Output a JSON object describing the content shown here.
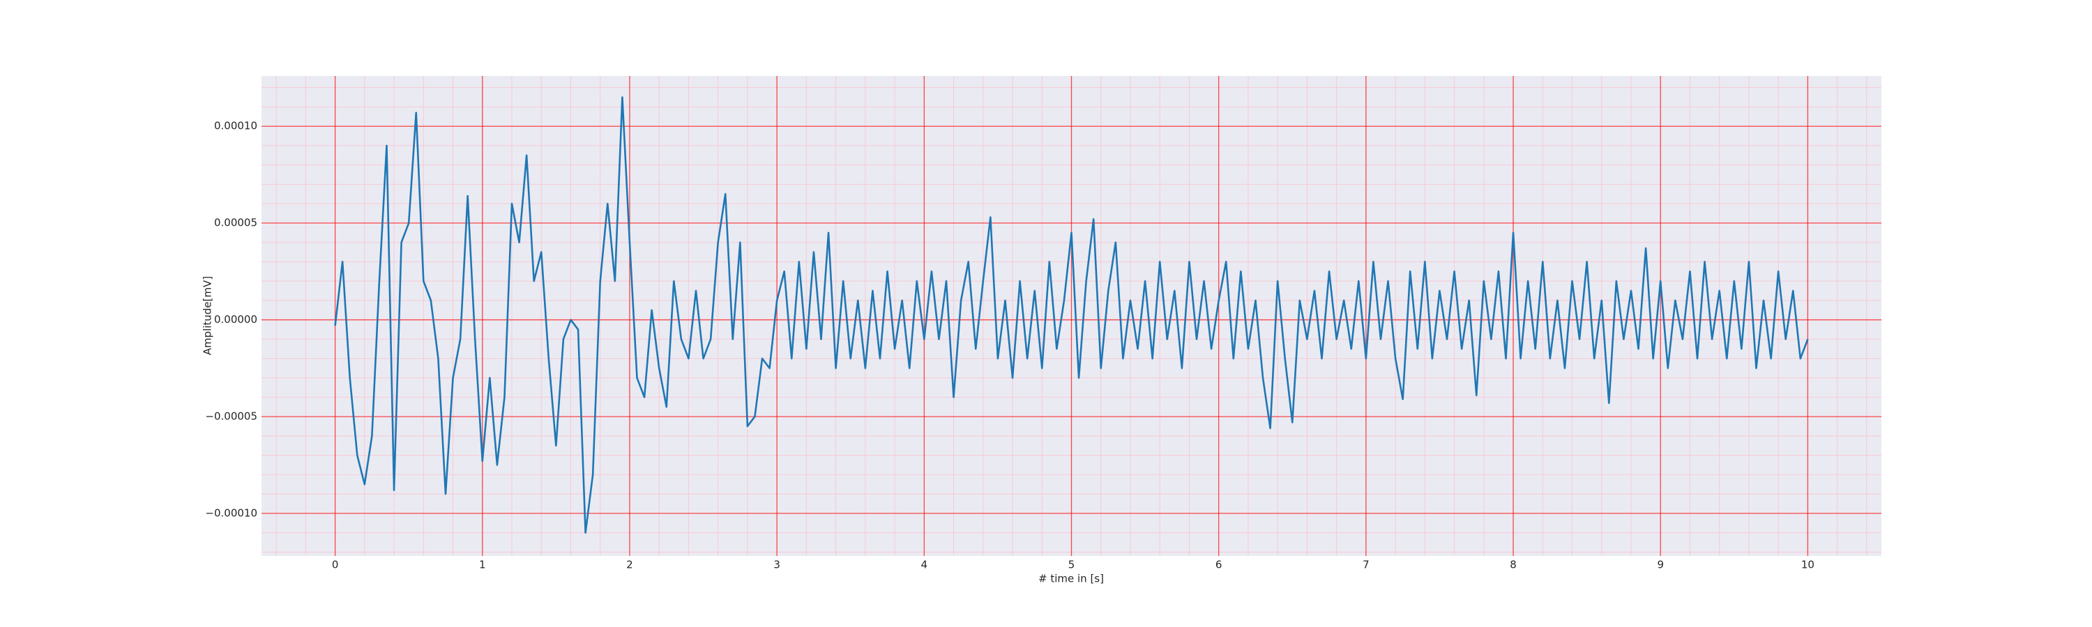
{
  "chart_data": {
    "type": "line",
    "xlabel": "# time in [s]",
    "ylabel": "Amplitude[mV]",
    "color": "#1f77b4",
    "background": "#eaeaf2",
    "grid": true,
    "grid_color": "#ff0000",
    "minor_grid": true,
    "minor_grid_color": "#ffb6c1",
    "xlim": [
      -0.5,
      10.5
    ],
    "ylim": [
      -0.000122,
      0.000126
    ],
    "xticks": [
      0,
      1,
      2,
      3,
      4,
      5,
      6,
      7,
      8,
      9,
      10
    ],
    "yticks": [
      {
        "value": -0.0001,
        "label": "−0.00010"
      },
      {
        "value": -5e-05,
        "label": "−0.00005"
      },
      {
        "value": 0,
        "label": "0.00000"
      },
      {
        "value": 5e-05,
        "label": "0.00005"
      },
      {
        "value": 0.0001,
        "label": "0.00010"
      }
    ],
    "xminorticks": [
      -0.4,
      -0.2,
      0.2,
      0.4,
      0.6,
      0.8,
      1.2,
      1.4,
      1.6,
      1.8,
      2.2,
      2.4,
      2.6,
      2.8,
      3.2,
      3.4,
      3.6,
      3.8,
      4.2,
      4.4,
      4.6,
      4.8,
      5.2,
      5.4,
      5.6,
      5.8,
      6.2,
      6.4,
      6.6,
      6.8,
      7.2,
      7.4,
      7.6,
      7.8,
      8.2,
      8.4,
      8.6,
      8.8,
      9.2,
      9.4,
      9.6,
      9.8,
      10.2,
      10.4
    ],
    "yminorticks": [
      -0.00012,
      -0.00011,
      -9e-05,
      -8e-05,
      -7e-05,
      -6e-05,
      -4e-05,
      -3e-05,
      -2e-05,
      -1e-05,
      1e-05,
      2e-05,
      3e-05,
      4e-05,
      6e-05,
      7e-05,
      8e-05,
      9e-05,
      0.00011,
      0.00012
    ],
    "x": [
      0,
      0.05,
      0.1,
      0.15,
      0.2,
      0.25,
      0.3,
      0.35,
      0.4,
      0.45,
      0.5,
      0.55,
      0.6,
      0.65,
      0.7,
      0.75,
      0.8,
      0.85,
      0.9,
      0.95,
      1,
      1.05,
      1.1,
      1.15,
      1.2,
      1.25,
      1.3,
      1.35,
      1.4,
      1.45,
      1.5,
      1.55,
      1.6,
      1.65,
      1.7,
      1.75,
      1.8,
      1.85,
      1.9,
      1.95,
      2,
      2.05,
      2.1,
      2.15,
      2.2,
      2.25,
      2.3,
      2.35,
      2.4,
      2.45,
      2.5,
      2.55,
      2.6,
      2.65,
      2.7,
      2.75,
      2.8,
      2.85,
      2.9,
      2.95,
      3,
      3.05,
      3.1,
      3.15,
      3.2,
      3.25,
      3.3,
      3.35,
      3.4,
      3.45,
      3.5,
      3.55,
      3.6,
      3.65,
      3.7,
      3.75,
      3.8,
      3.85,
      3.9,
      3.95,
      4,
      4.05,
      4.1,
      4.15,
      4.2,
      4.25,
      4.3,
      4.35,
      4.4,
      4.45,
      4.5,
      4.55,
      4.6,
      4.65,
      4.7,
      4.75,
      4.8,
      4.85,
      4.9,
      4.95,
      5,
      5.05,
      5.1,
      5.15,
      5.2,
      5.25,
      5.3,
      5.35,
      5.4,
      5.45,
      5.5,
      5.55,
      5.6,
      5.65,
      5.7,
      5.75,
      5.8,
      5.85,
      5.9,
      5.95,
      6,
      6.05,
      6.1,
      6.15,
      6.2,
      6.25,
      6.3,
      6.35,
      6.4,
      6.45,
      6.5,
      6.55,
      6.6,
      6.65,
      6.7,
      6.75,
      6.8,
      6.85,
      6.9,
      6.95,
      7,
      7.05,
      7.1,
      7.15,
      7.2,
      7.25,
      7.3,
      7.35,
      7.4,
      7.45,
      7.5,
      7.55,
      7.6,
      7.65,
      7.7,
      7.75,
      7.8,
      7.85,
      7.9,
      7.95,
      8,
      8.05,
      8.1,
      8.15,
      8.2,
      8.25,
      8.3,
      8.35,
      8.4,
      8.45,
      8.5,
      8.55,
      8.6,
      8.65,
      8.7,
      8.75,
      8.8,
      8.85,
      8.9,
      8.95,
      9,
      9.05,
      9.1,
      9.15,
      9.2,
      9.25,
      9.3,
      9.35,
      9.4,
      9.45,
      9.5,
      9.55,
      9.6,
      9.65,
      9.7,
      9.75,
      9.8,
      9.85,
      9.9,
      9.95,
      10
    ],
    "values": [
      -3e-06,
      3e-05,
      -3e-05,
      -7e-05,
      -8.5e-05,
      -6e-05,
      2e-05,
      9e-05,
      -8.8e-05,
      4e-05,
      5e-05,
      0.000107,
      2e-05,
      1e-05,
      -2e-05,
      -9e-05,
      -3e-05,
      -1e-05,
      6.4e-05,
      -1e-05,
      -7.3e-05,
      -3e-05,
      -7.5e-05,
      -4e-05,
      6e-05,
      4e-05,
      8.5e-05,
      2e-05,
      3.5e-05,
      -2e-05,
      -6.5e-05,
      -1e-05,
      0,
      -5e-06,
      -0.00011,
      -8e-05,
      2e-05,
      6e-05,
      2e-05,
      0.000115,
      4e-05,
      -3e-05,
      -4e-05,
      5e-06,
      -2.5e-05,
      -4.5e-05,
      2e-05,
      -1e-05,
      -2e-05,
      1.5e-05,
      -2e-05,
      -1e-05,
      4e-05,
      6.5e-05,
      -1e-05,
      4e-05,
      -5.5e-05,
      -5e-05,
      -2e-05,
      -2.5e-05,
      1e-05,
      2.5e-05,
      -2e-05,
      3e-05,
      -1.5e-05,
      3.5e-05,
      -1e-05,
      4.5e-05,
      -2.5e-05,
      2e-05,
      -2e-05,
      1e-05,
      -2.5e-05,
      1.5e-05,
      -2e-05,
      2.5e-05,
      -1.5e-05,
      1e-05,
      -2.5e-05,
      2e-05,
      -1e-05,
      2.5e-05,
      -1e-05,
      2e-05,
      -4e-05,
      1e-05,
      3e-05,
      -1.5e-05,
      2e-05,
      5.3e-05,
      -2e-05,
      1e-05,
      -3e-05,
      2e-05,
      -2e-05,
      1.5e-05,
      -2.5e-05,
      3e-05,
      -1.5e-05,
      1e-05,
      4.5e-05,
      -3e-05,
      2e-05,
      5.2e-05,
      -2.5e-05,
      1.5e-05,
      4e-05,
      -2e-05,
      1e-05,
      -1.5e-05,
      2e-05,
      -2e-05,
      3e-05,
      -1e-05,
      1.5e-05,
      -2.5e-05,
      3e-05,
      -1e-05,
      2e-05,
      -1.5e-05,
      1e-05,
      3e-05,
      -2e-05,
      2.5e-05,
      -1.5e-05,
      1e-05,
      -3e-05,
      -5.6e-05,
      2e-05,
      -2e-05,
      -5.3e-05,
      1e-05,
      -1e-05,
      1.5e-05,
      -2e-05,
      2.5e-05,
      -1e-05,
      1e-05,
      -1.5e-05,
      2e-05,
      -2e-05,
      3e-05,
      -1e-05,
      2e-05,
      -2e-05,
      -4.1e-05,
      2.5e-05,
      -1.5e-05,
      3e-05,
      -2e-05,
      1.5e-05,
      -1e-05,
      2.5e-05,
      -1.5e-05,
      1e-05,
      -3.9e-05,
      2e-05,
      -1e-05,
      2.5e-05,
      -2e-05,
      4.5e-05,
      -2e-05,
      2e-05,
      -1.5e-05,
      3e-05,
      -2e-05,
      1e-05,
      -2.5e-05,
      2e-05,
      -1e-05,
      3e-05,
      -2e-05,
      1e-05,
      -4.3e-05,
      2e-05,
      -1e-05,
      1.5e-05,
      -1.5e-05,
      3.7e-05,
      -2e-05,
      2e-05,
      -2.5e-05,
      1e-05,
      -1e-05,
      2.5e-05,
      -2e-05,
      3e-05,
      -1e-05,
      1.5e-05,
      -2e-05,
      2e-05,
      -1.5e-05,
      3e-05,
      -2.5e-05,
      1e-05,
      -2e-05,
      2.5e-05,
      -1e-05,
      1.5e-05,
      -2e-05,
      -1e-05
    ]
  }
}
